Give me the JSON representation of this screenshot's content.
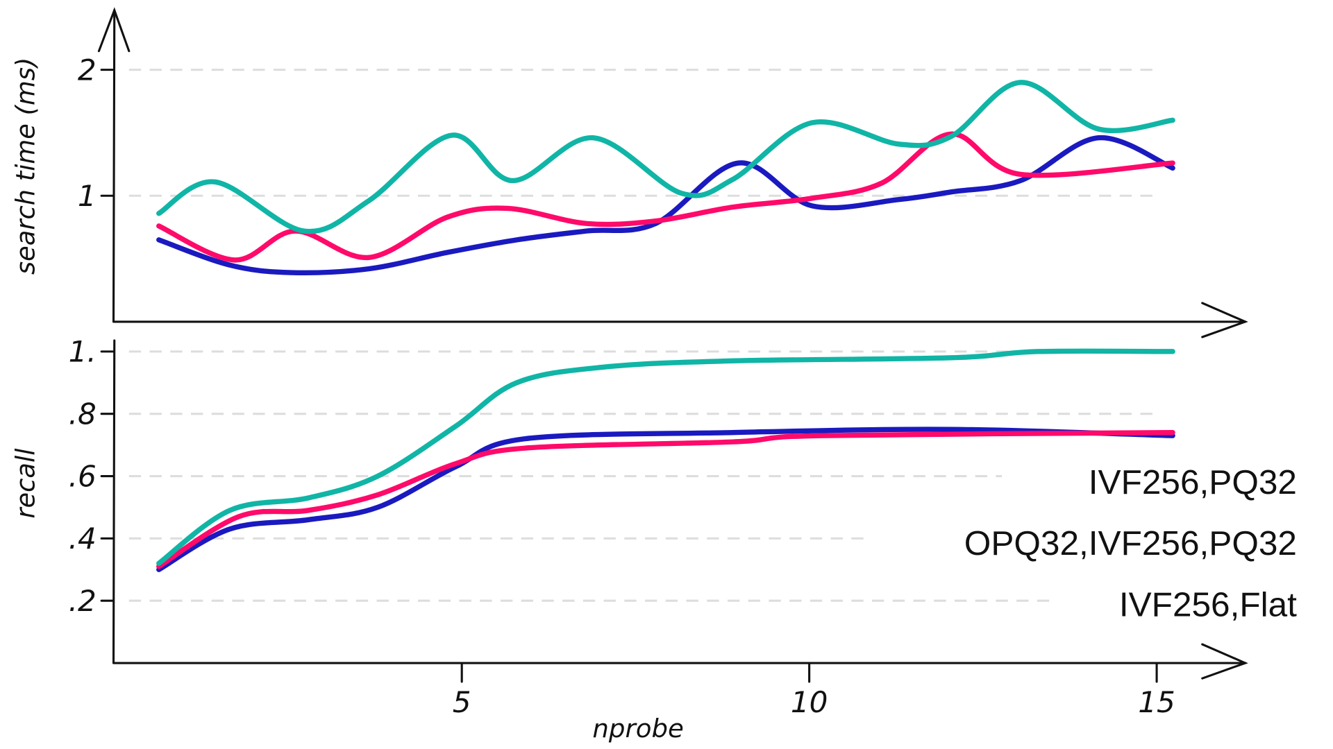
{
  "chart_data": [
    {
      "type": "line",
      "ylabel": "search time (ms)",
      "xlabel": "",
      "xlim": [
        0,
        16
      ],
      "ylim": [
        0,
        2.4
      ],
      "yticks": [
        {
          "value": 1,
          "label": "1"
        },
        {
          "value": 2,
          "label": "2"
        }
      ],
      "grid": true,
      "series": [
        {
          "name": "IVF256,PQ32",
          "color": "#1a1ac0",
          "x": [
            0.64,
            1.66,
            2.54,
            3.66,
            4.79,
            5.79,
            6.79,
            7.79,
            8.98,
            10.04,
            11.29,
            12.04,
            13.04,
            14.16,
            15.23
          ],
          "y": [
            0.65,
            0.45,
            0.39,
            0.42,
            0.55,
            0.65,
            0.72,
            0.78,
            1.26,
            0.92,
            0.97,
            1.03,
            1.12,
            1.46,
            1.22
          ]
        },
        {
          "name": "OPQ32,IVF256,PQ32",
          "color": "#ff0a6a",
          "x": [
            0.64,
            1.73,
            2.6,
            3.66,
            4.79,
            5.66,
            6.79,
            7.79,
            8.9,
            10.04,
            11.04,
            12.04,
            13.04,
            15.23
          ],
          "y": [
            0.76,
            0.49,
            0.72,
            0.51,
            0.83,
            0.9,
            0.78,
            0.8,
            0.91,
            0.98,
            1.1,
            1.49,
            1.17,
            1.26
          ]
        },
        {
          "name": "IVF256,Flat",
          "color": "#10b5a6",
          "x": [
            0.64,
            1.45,
            2.73,
            3.66,
            4.85,
            5.73,
            6.89,
            8.16,
            8.9,
            10.04,
            11.29,
            12.04,
            13.04,
            14.16,
            15.23
          ],
          "y": [
            0.86,
            1.11,
            0.72,
            0.96,
            1.48,
            1.12,
            1.46,
            1.02,
            1.13,
            1.58,
            1.41,
            1.47,
            1.9,
            1.53,
            1.6
          ]
        }
      ]
    },
    {
      "type": "line",
      "ylabel": "recall",
      "xlabel": "nprobe",
      "xlim": [
        0,
        16
      ],
      "ylim": [
        0,
        1.05
      ],
      "xticks": [
        {
          "value": 5,
          "label": "5"
        },
        {
          "value": 10,
          "label": "10"
        },
        {
          "value": 15,
          "label": "15"
        }
      ],
      "yticks": [
        {
          "value": 0.2,
          "label": ".2"
        },
        {
          "value": 0.4,
          "label": ".4"
        },
        {
          "value": 0.6,
          "label": ".6"
        },
        {
          "value": 0.8,
          "label": ".8"
        },
        {
          "value": 1.0,
          "label": "1."
        }
      ],
      "grid": true,
      "legend": {
        "placement": "right",
        "entries": [
          "IVF256,PQ32",
          "OPQ32,IVF256,PQ32",
          "IVF256,Flat"
        ]
      },
      "series": [
        {
          "name": "IVF256,PQ32",
          "color": "#1a1ac0",
          "x": [
            0.64,
            1.66,
            2.79,
            3.79,
            4.91,
            5.91,
            8.9,
            12.04,
            15.23
          ],
          "y": [
            0.3,
            0.43,
            0.46,
            0.5,
            0.63,
            0.72,
            0.74,
            0.75,
            0.73
          ]
        },
        {
          "name": "OPQ32,IVF256,PQ32",
          "color": "#ff0a6a",
          "x": [
            0.64,
            1.79,
            2.79,
            3.79,
            4.91,
            5.91,
            8.9,
            10.16,
            15.23
          ],
          "y": [
            0.31,
            0.47,
            0.49,
            0.54,
            0.64,
            0.69,
            0.71,
            0.73,
            0.74
          ]
        },
        {
          "name": "IVF256,Flat",
          "color": "#10b5a6",
          "x": [
            0.64,
            1.66,
            2.79,
            3.79,
            4.91,
            5.79,
            7.04,
            8.9,
            12.04,
            13.29,
            15.23
          ],
          "y": [
            0.32,
            0.49,
            0.53,
            0.6,
            0.76,
            0.9,
            0.95,
            0.97,
            0.98,
            1.0,
            1.0
          ]
        }
      ]
    }
  ]
}
